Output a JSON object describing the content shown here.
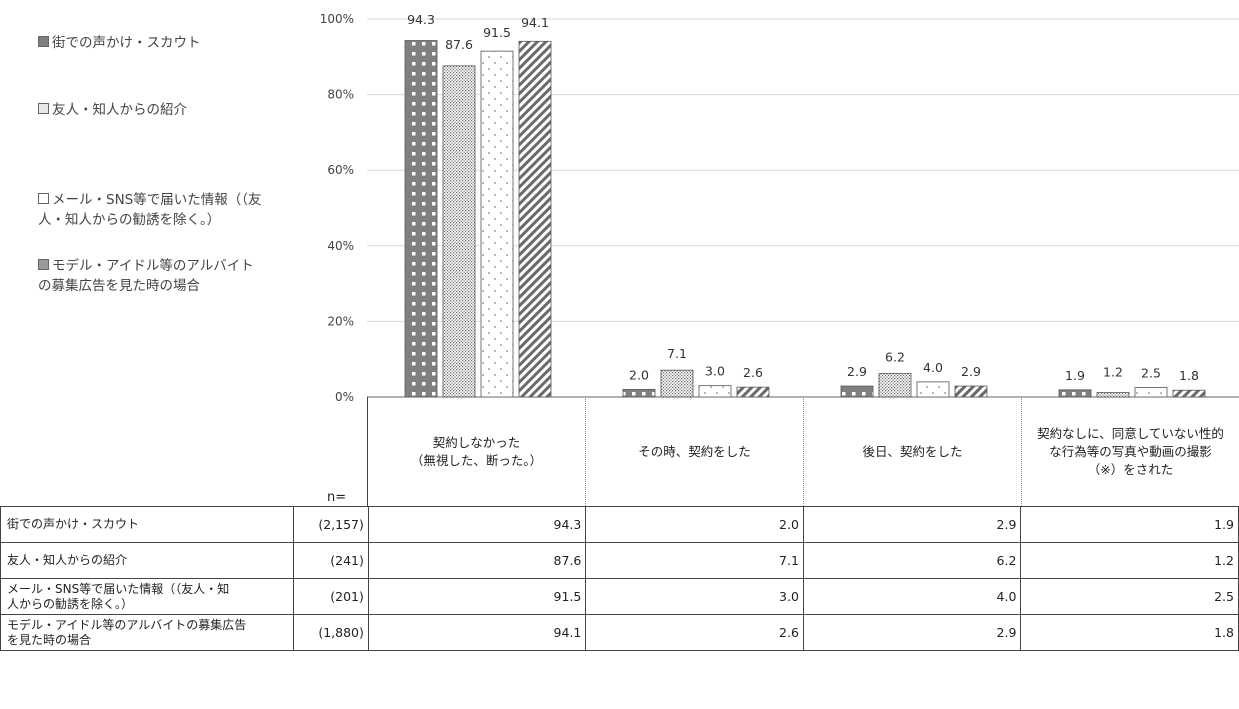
{
  "chart_data": {
    "type": "bar",
    "categories": [
      "契約しなかった\n（無視した、断った。）",
      "その時、契約をした",
      "後日、契約をした",
      "契約なしに、同意していない性的\nな行為等の写真や動画の撮影\n（※）をされた"
    ],
    "series": [
      {
        "name": "街での声かけ・スカウト",
        "values": [
          94.3,
          2.0,
          2.9,
          1.9
        ],
        "n": "(2,157)",
        "row_label": "街での声かけ・スカウト"
      },
      {
        "name": "友人・知人からの紹介",
        "values": [
          87.6,
          7.1,
          6.2,
          1.2
        ],
        "n": "(241)",
        "row_label": "友人・知人からの紹介"
      },
      {
        "name": "メール・SNS等で届いた情報（（友\n人・知人からの勧誘を除く。）",
        "values": [
          91.5,
          3.0,
          4.0,
          2.5
        ],
        "n": "(201)",
        "row_label": "メール・SNS等で届いた情報（（友人・知\n人からの勧誘を除く。）"
      },
      {
        "name": "モデル・アイドル等のアルバイト\nの募集広告を見た時の場合",
        "values": [
          94.1,
          2.6,
          2.9,
          1.8
        ],
        "n": "(1,880)",
        "row_label": "モデル・アイドル等のアルバイトの募集広告\nを見た時の場合"
      }
    ],
    "value_labels": [
      [
        "94.3",
        "2.0",
        "2.9",
        "1.9"
      ],
      [
        "87.6",
        "7.1",
        "6.2",
        "1.2"
      ],
      [
        "91.5",
        "3.0",
        "4.0",
        "2.5"
      ],
      [
        "94.1",
        "2.6",
        "2.9",
        "1.8"
      ]
    ],
    "y_ticks": [
      "0%",
      "20%",
      "40%",
      "60%",
      "80%",
      "100%"
    ],
    "ylim": [
      0,
      100
    ],
    "grid": true,
    "legend_position": "left",
    "n_label": "n="
  }
}
